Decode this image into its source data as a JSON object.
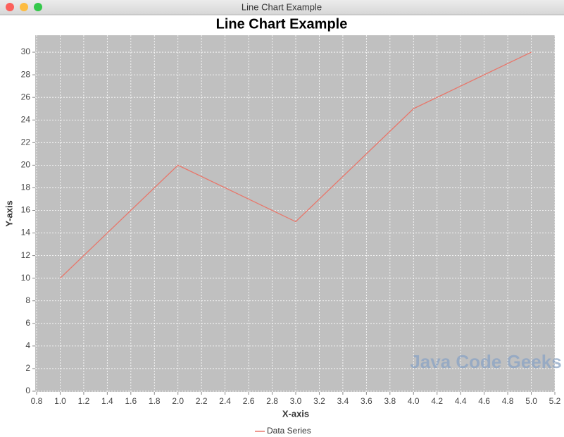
{
  "window": {
    "title": "Line Chart Example"
  },
  "watermark": "Java Code Geeks",
  "chart_data": {
    "type": "line",
    "title": "Line Chart Example",
    "x_label": "X-axis",
    "y_label": "Y-axis",
    "x": [
      1,
      2,
      3,
      4,
      5
    ],
    "series": [
      {
        "name": "Data Series",
        "color": "#e8766a",
        "values": [
          10,
          20,
          15,
          25,
          30
        ]
      }
    ],
    "xlim": [
      0.8,
      5.2
    ],
    "xticks": [
      0.8,
      {
        "value": 1,
        "label": "1.0"
      },
      1.2,
      1.4,
      1.6,
      1.8,
      {
        "value": 2,
        "label": "2.0"
      },
      2.2,
      2.4,
      2.6,
      2.8,
      {
        "value": 3,
        "label": "3.0"
      },
      3.2,
      3.4,
      3.6,
      3.8,
      {
        "value": 4,
        "label": "4.0"
      },
      4.2,
      4.4,
      4.6,
      4.8,
      {
        "value": 5,
        "label": "5.0"
      },
      5.2
    ],
    "ylim": [
      0,
      31.5
    ],
    "yticks": [
      0,
      2,
      4,
      6,
      8,
      10,
      12,
      14,
      16,
      18,
      20,
      22,
      24,
      26,
      28,
      30
    ],
    "grid": true,
    "legend": "bottom"
  }
}
